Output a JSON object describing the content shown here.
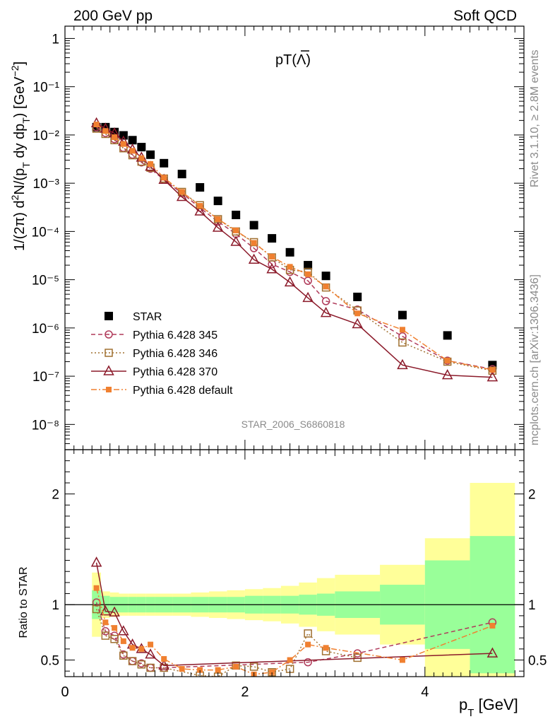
{
  "header": {
    "left": "200 GeV pp",
    "right": "Soft QCD"
  },
  "side": {
    "rivet": "Rivet 3.1.10, ≥ 2.8M events",
    "mcplots": "mcplots.cern.ch [arXiv:1306.3436]"
  },
  "watermark": "STAR_2006_S6860818",
  "chart_data": [
    {
      "type": "scatter",
      "title": "pT(Λ̄)",
      "ylabel": "1/(2π) d²N/(p_T dy dp_T) [GeV⁻²]",
      "xlabel": "p_T [GeV]",
      "xlim": [
        0,
        5.1
      ],
      "ylim": [
        3e-09,
        1.8
      ],
      "yscale": "log",
      "yticks": [
        {
          "v": 1e-08,
          "label": "10⁻⁸"
        },
        {
          "v": 1e-07,
          "label": "10⁻⁷"
        },
        {
          "v": 1e-06,
          "label": "10⁻⁶"
        },
        {
          "v": 1e-05,
          "label": "10⁻⁵"
        },
        {
          "v": 0.0001,
          "label": "10⁻⁴"
        },
        {
          "v": 0.001,
          "label": "10⁻³"
        },
        {
          "v": 0.01,
          "label": "10⁻²"
        },
        {
          "v": 0.1,
          "label": "10⁻¹"
        },
        {
          "v": 1,
          "label": "1"
        }
      ],
      "series": [
        {
          "name": "STAR",
          "color": "#000000",
          "marker": "square-filled",
          "line": "none",
          "x": [
            0.35,
            0.45,
            0.55,
            0.65,
            0.75,
            0.85,
            0.95,
            1.1,
            1.3,
            1.5,
            1.7,
            1.9,
            2.1,
            2.3,
            2.5,
            2.7,
            2.9,
            3.25,
            3.75,
            4.25,
            4.75
          ],
          "y": [
            0.0145,
            0.0145,
            0.0115,
            0.0098,
            0.0078,
            0.0056,
            0.0039,
            0.0026,
            0.00155,
            0.00082,
            0.00043,
            0.00022,
            0.000135,
            7.2e-05,
            3.7e-05,
            2e-05,
            1.2e-05,
            4.4e-06,
            1.85e-06,
            7e-07,
            1.7e-07
          ]
        },
        {
          "name": "Pythia 6.428 345",
          "color": "#b03a5a",
          "marker": "circle-open",
          "line": "dashed",
          "x": [
            0.35,
            0.45,
            0.55,
            0.65,
            0.75,
            0.85,
            0.95,
            1.1,
            1.3,
            1.5,
            1.7,
            1.9,
            2.1,
            2.3,
            2.5,
            2.7,
            2.9,
            3.25,
            3.75,
            4.25,
            4.75
          ],
          "y": [
            0.0145,
            0.011,
            0.0082,
            0.0054,
            0.0039,
            0.0027,
            0.002,
            0.00118,
            0.00062,
            0.00031,
            0.00016,
            8.9e-05,
            4.5e-05,
            2.1e-05,
            1.45e-05,
            9.5e-06,
            3.6e-06,
            2.4e-06,
            6.7e-07,
            2.1e-07,
            1.4e-07
          ]
        },
        {
          "name": "Pythia 6.428 346",
          "color": "#a07030",
          "marker": "square-open",
          "line": "dotted",
          "x": [
            0.35,
            0.45,
            0.55,
            0.65,
            0.75,
            0.85,
            0.95,
            1.1,
            1.3,
            1.5,
            1.7,
            1.9,
            2.1,
            2.3,
            2.5,
            2.7,
            2.9,
            3.25,
            3.75,
            4.25,
            4.75
          ],
          "y": [
            0.0135,
            0.0105,
            0.0078,
            0.0053,
            0.0038,
            0.0028,
            0.0021,
            0.00125,
            0.00066,
            0.00035,
            0.00018,
            0.0001,
            6e-05,
            2.9e-05,
            1.6e-05,
            1.45e-05,
            6.9e-06,
            2.3e-06,
            5e-07,
            2e-07,
            1.3e-07
          ]
        },
        {
          "name": "Pythia 6.428 370",
          "color": "#8b1a2a",
          "marker": "triangle-open",
          "line": "solid",
          "x": [
            0.35,
            0.45,
            0.55,
            0.65,
            0.75,
            0.85,
            0.95,
            1.1,
            1.3,
            1.5,
            1.7,
            1.9,
            2.1,
            2.3,
            2.5,
            2.7,
            2.9,
            3.25,
            3.75,
            4.25,
            4.75
          ],
          "y": [
            0.0175,
            0.0135,
            0.0108,
            0.0073,
            0.005,
            0.0034,
            0.0022,
            0.00118,
            0.00052,
            0.00026,
            0.00012,
            6.1e-05,
            2.6e-05,
            1.65e-05,
            8.8e-06,
            4.2e-06,
            2.05e-06,
            1.2e-06,
            1.7e-07,
            1.05e-07,
            9.5e-08
          ]
        },
        {
          "name": "Pythia 6.428 default",
          "color": "#f08030",
          "marker": "square-filled-small",
          "line": "dashdot",
          "x": [
            0.35,
            0.45,
            0.55,
            0.65,
            0.75,
            0.85,
            0.95,
            1.1,
            1.3,
            1.5,
            1.7,
            1.9,
            2.1,
            2.3,
            2.5,
            2.7,
            2.9,
            3.25,
            3.75,
            4.25,
            4.75
          ],
          "y": [
            0.0165,
            0.0121,
            0.009,
            0.0065,
            0.0047,
            0.0033,
            0.0025,
            0.0013,
            0.00066,
            0.00034,
            0.00018,
            0.000105,
            5.8e-05,
            3e-05,
            1.85e-05,
            1.3e-05,
            7.2e-06,
            2e-06,
            9.2e-07,
            2.1e-07,
            1.35e-07
          ]
        }
      ]
    },
    {
      "type": "line",
      "ylabel": "Ratio to STAR",
      "xlabel": "p_T [GeV]",
      "xlim": [
        0,
        5.1
      ],
      "ylim": [
        0.35,
        2.4
      ],
      "xticks": [
        {
          "v": 0,
          "label": "0"
        },
        {
          "v": 2,
          "label": "2"
        },
        {
          "v": 4,
          "label": "4"
        }
      ],
      "yticks": [
        {
          "v": 0.5,
          "label": "0.5"
        },
        {
          "v": 1,
          "label": "1"
        },
        {
          "v": 2,
          "label": "2"
        }
      ],
      "bands": {
        "edges": [
          0.3,
          0.4,
          0.5,
          0.6,
          0.7,
          0.8,
          0.9,
          1.0,
          1.2,
          1.4,
          1.6,
          1.8,
          2.0,
          2.2,
          2.4,
          2.6,
          2.8,
          3.0,
          3.5,
          4.0,
          4.5,
          5.0
        ],
        "green_lo": [
          0.87,
          0.92,
          0.93,
          0.93,
          0.93,
          0.93,
          0.93,
          0.93,
          0.93,
          0.93,
          0.93,
          0.93,
          0.92,
          0.92,
          0.92,
          0.91,
          0.9,
          0.88,
          0.82,
          0.6,
          0.38
        ],
        "green_hi": [
          1.13,
          1.08,
          1.07,
          1.07,
          1.07,
          1.07,
          1.07,
          1.07,
          1.07,
          1.07,
          1.07,
          1.07,
          1.08,
          1.08,
          1.08,
          1.09,
          1.1,
          1.12,
          1.18,
          1.4,
          1.62
        ],
        "yellow_lo": [
          0.71,
          0.88,
          0.89,
          0.9,
          0.9,
          0.9,
          0.9,
          0.9,
          0.9,
          0.89,
          0.88,
          0.87,
          0.86,
          0.85,
          0.83,
          0.8,
          0.76,
          0.73,
          0.64,
          0.35,
          0.35
        ],
        "yellow_hi": [
          1.29,
          1.12,
          1.11,
          1.1,
          1.1,
          1.1,
          1.1,
          1.1,
          1.1,
          1.11,
          1.12,
          1.13,
          1.14,
          1.15,
          1.17,
          1.2,
          1.24,
          1.27,
          1.36,
          1.6,
          2.1
        ]
      },
      "series": [
        {
          "name": "Pythia 6.428 345",
          "color": "#b03a5a",
          "marker": "circle-open",
          "line": "dashed",
          "x": [
            0.35,
            0.45,
            0.55,
            0.65,
            0.75,
            0.85,
            0.95,
            1.1,
            2.7,
            3.25,
            4.75
          ],
          "y": [
            1.02,
            0.76,
            0.72,
            0.55,
            0.49,
            0.47,
            0.43,
            0.43,
            0.48,
            0.56,
            0.84
          ]
        },
        {
          "name": "Pythia 6.428 346",
          "color": "#a07030",
          "marker": "square-open",
          "line": "dotted",
          "x": [
            0.35,
            0.45,
            0.55,
            0.65,
            0.75,
            0.85,
            0.95,
            1.1,
            1.5,
            1.7,
            1.9,
            2.1,
            2.3,
            2.5,
            2.7,
            2.9,
            3.25
          ],
          "y": [
            0.96,
            0.72,
            0.69,
            0.54,
            0.49,
            0.46,
            0.43,
            0.43,
            0.36,
            0.35,
            0.45,
            0.44,
            0.39,
            0.42,
            0.74,
            0.58,
            0.52
          ]
        },
        {
          "name": "Pythia 6.428 370",
          "color": "#8b1a2a",
          "marker": "triangle-open",
          "line": "solid",
          "x": [
            0.35,
            0.45,
            0.55,
            0.65,
            0.75,
            0.85,
            0.95,
            1.1,
            4.75
          ],
          "y": [
            1.38,
            0.94,
            0.93,
            0.76,
            0.64,
            0.6,
            0.55,
            0.45,
            0.56
          ]
        },
        {
          "name": "Pythia 6.428 default",
          "color": "#f08030",
          "marker": "square-filled-small",
          "line": "dashdot",
          "x": [
            0.35,
            0.45,
            0.55,
            0.65,
            0.75,
            0.85,
            0.95,
            1.1,
            1.3,
            1.5,
            1.7,
            1.9,
            2.1,
            2.3,
            2.5,
            2.7,
            2.9,
            3.75,
            4.75
          ],
          "y": [
            1.15,
            0.84,
            0.79,
            0.67,
            0.61,
            0.6,
            0.64,
            0.51,
            0.42,
            0.41,
            0.41,
            0.44,
            0.37,
            0.39,
            0.5,
            0.64,
            0.61,
            0.5,
            0.81
          ]
        }
      ]
    }
  ]
}
